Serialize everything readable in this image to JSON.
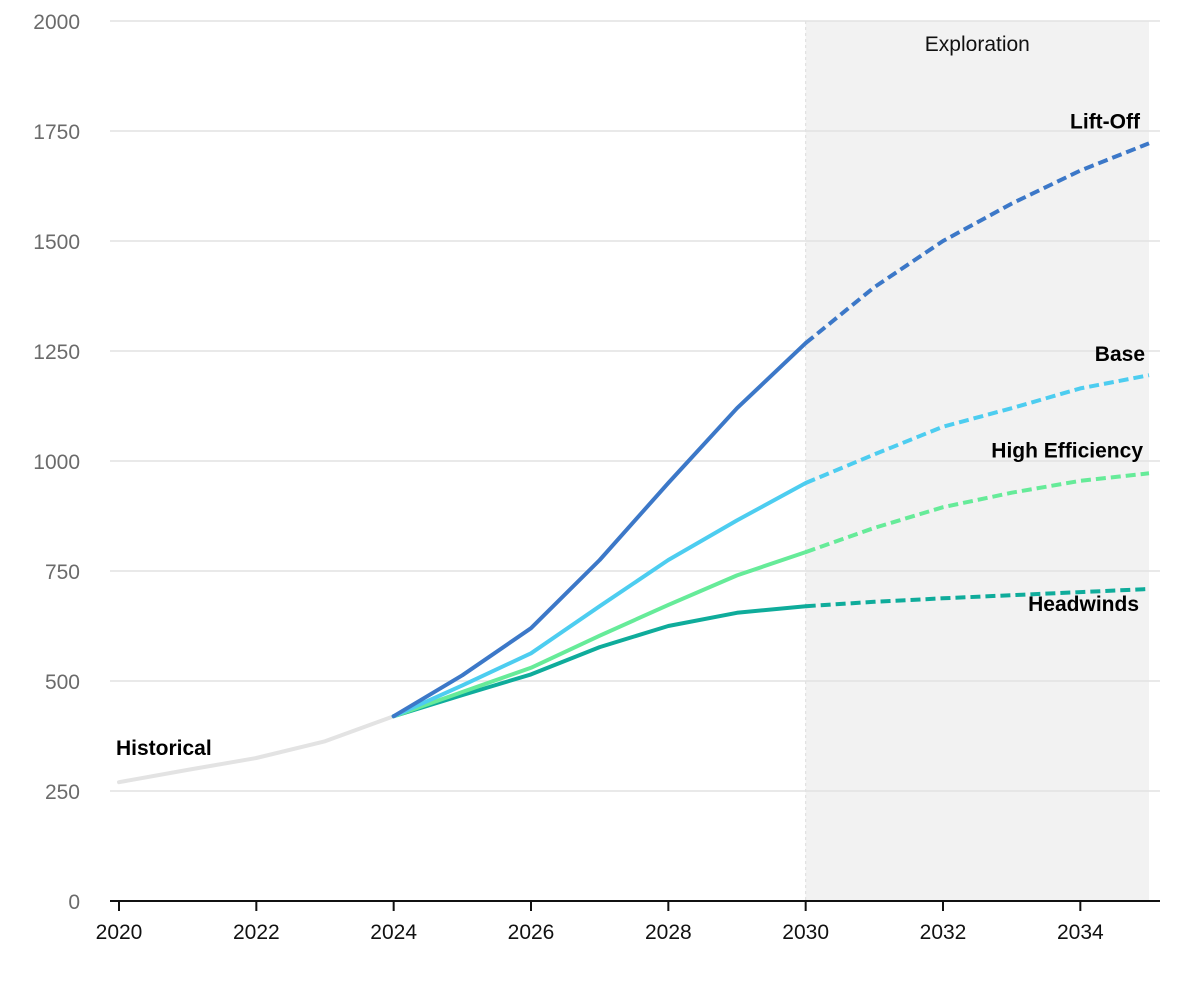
{
  "chart_data": {
    "type": "line",
    "title": "",
    "xlabel": "",
    "ylabel": "",
    "xlim": [
      2020,
      2035
    ],
    "ylim": [
      0,
      2000
    ],
    "x_ticks": [
      "2020",
      "2022",
      "2024",
      "2026",
      "2028",
      "2030",
      "2032",
      "2034"
    ],
    "y_ticks": [
      "0",
      "250",
      "500",
      "750",
      "1000",
      "1250",
      "1500",
      "1750",
      "2000"
    ],
    "grid": "horizontal",
    "legend": "labels at line ends",
    "shaded_region": {
      "label": "Exploration",
      "x_start": 2030,
      "x_end": 2035,
      "color": "#f2f2f2"
    },
    "series": [
      {
        "name": "Historical",
        "color": "#e3e3e3",
        "style": "solid",
        "points": [
          [
            2020,
            270
          ],
          [
            2021,
            298
          ],
          [
            2022,
            325
          ],
          [
            2023,
            363
          ],
          [
            2024,
            420
          ]
        ]
      },
      {
        "name": "Lift-Off",
        "color": "#3c78c8",
        "style": "solid",
        "points": [
          [
            2024,
            420
          ],
          [
            2025,
            513
          ],
          [
            2026,
            620
          ],
          [
            2027,
            775
          ],
          [
            2028,
            950
          ],
          [
            2029,
            1120
          ],
          [
            2030,
            1268
          ]
        ]
      },
      {
        "name": "Lift-Off",
        "color": "#3c78c8",
        "style": "dashed",
        "points": [
          [
            2030,
            1268
          ],
          [
            2031,
            1395
          ],
          [
            2032,
            1500
          ],
          [
            2033,
            1585
          ],
          [
            2034,
            1660
          ],
          [
            2035,
            1722
          ]
        ]
      },
      {
        "name": "Base",
        "color": "#4dcdf0",
        "style": "solid",
        "points": [
          [
            2024,
            420
          ],
          [
            2025,
            490
          ],
          [
            2026,
            563
          ],
          [
            2027,
            670
          ],
          [
            2028,
            775
          ],
          [
            2029,
            865
          ],
          [
            2030,
            950
          ]
        ]
      },
      {
        "name": "Base",
        "color": "#4dcdf0",
        "style": "dashed",
        "points": [
          [
            2030,
            950
          ],
          [
            2031,
            1015
          ],
          [
            2032,
            1078
          ],
          [
            2033,
            1120
          ],
          [
            2034,
            1165
          ],
          [
            2035,
            1195
          ]
        ]
      },
      {
        "name": "High Efficiency",
        "color": "#66eb99",
        "style": "solid",
        "points": [
          [
            2024,
            420
          ],
          [
            2025,
            475
          ],
          [
            2026,
            530
          ],
          [
            2027,
            603
          ],
          [
            2028,
            673
          ],
          [
            2029,
            740
          ],
          [
            2030,
            793
          ]
        ]
      },
      {
        "name": "High Efficiency",
        "color": "#66eb99",
        "style": "dashed",
        "points": [
          [
            2030,
            793
          ],
          [
            2031,
            848
          ],
          [
            2032,
            895
          ],
          [
            2033,
            928
          ],
          [
            2034,
            955
          ],
          [
            2035,
            972
          ]
        ]
      },
      {
        "name": "Headwinds",
        "color": "#0fac9b",
        "style": "solid",
        "points": [
          [
            2024,
            420
          ],
          [
            2025,
            468
          ],
          [
            2026,
            515
          ],
          [
            2027,
            577
          ],
          [
            2028,
            625
          ],
          [
            2029,
            655
          ],
          [
            2030,
            670
          ]
        ]
      },
      {
        "name": "Headwinds",
        "color": "#0fac9b",
        "style": "dashed",
        "points": [
          [
            2030,
            670
          ],
          [
            2031,
            680
          ],
          [
            2032,
            688
          ],
          [
            2033,
            695
          ],
          [
            2034,
            702
          ],
          [
            2035,
            709
          ]
        ]
      }
    ],
    "labels": [
      {
        "text": "Historical",
        "series": "Historical"
      },
      {
        "text": "Lift-Off",
        "series": "Lift-Off"
      },
      {
        "text": "Base",
        "series": "Base"
      },
      {
        "text": "High Efficiency",
        "series": "High Efficiency"
      },
      {
        "text": "Headwinds",
        "series": "Headwinds"
      }
    ]
  }
}
